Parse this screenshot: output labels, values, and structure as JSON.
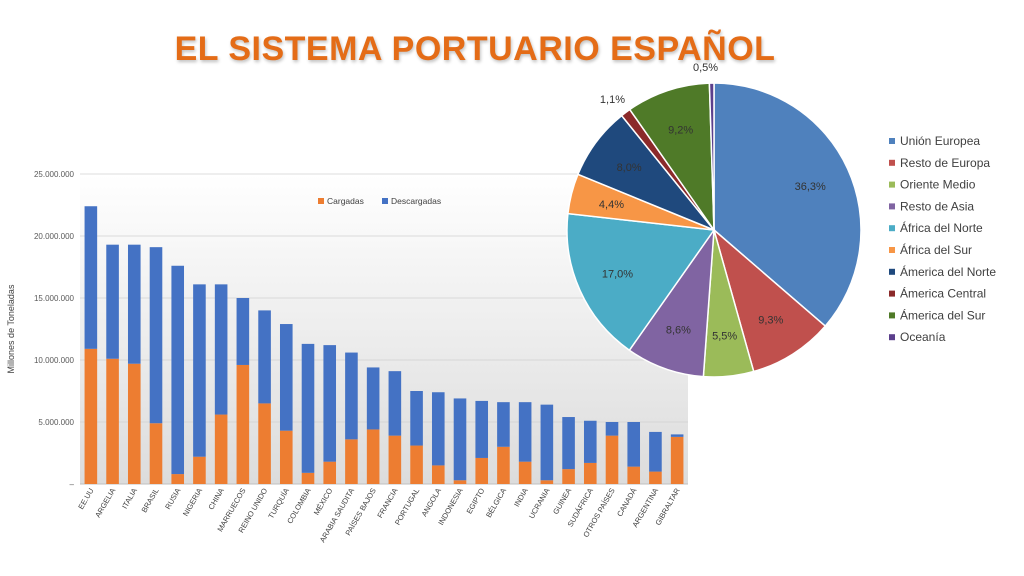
{
  "title": "EL SISTEMA PORTUARIO ESPAÑOL",
  "chart_data": [
    {
      "type": "bar",
      "stacked": true,
      "ylabel": "Millones de Toneladas",
      "ylim": [
        0,
        25000000
      ],
      "yticks": [
        "–",
        "5.000.000",
        "10.000.000",
        "15.000.000",
        "20.000.000",
        "25.000.000"
      ],
      "legend_position": "top-center",
      "categories": [
        "EE.UU",
        "ARGELIA",
        "ITALIA",
        "BRASIL",
        "RUSIA",
        "NIGERIA",
        "CHINA",
        "MARRUECOS",
        "REINO UNIDO",
        "TURQUÍA",
        "COLOMBIA",
        "MÉXICO",
        "ARABIA SAUDITA",
        "PAÍSES BAJOS",
        "FRANCIA",
        "PORTUGAL",
        "ANGOLA",
        "INDONESIA",
        "EGIPTO",
        "BÉLGICA",
        "INDIA",
        "UCRANIA",
        "GUINEA",
        "SUDÁFRICA",
        "OTROS PAÍSES",
        "CANADÁ",
        "ARGENTINA",
        "GIBRALTAR"
      ],
      "series": [
        {
          "name": "Cargadas",
          "color": "#ed7d31",
          "values": [
            10900000,
            10100000,
            9700000,
            4900000,
            800000,
            2200000,
            5600000,
            9600000,
            6500000,
            4300000,
            900000,
            1800000,
            3600000,
            4400000,
            3900000,
            3100000,
            1500000,
            300000,
            2100000,
            3000000,
            1800000,
            300000,
            1200000,
            1700000,
            3900000,
            1400000,
            1000000,
            3800000
          ]
        },
        {
          "name": "Descargadas",
          "color": "#4472c4",
          "values": [
            11500000,
            9200000,
            9600000,
            14200000,
            16800000,
            13900000,
            10500000,
            5400000,
            7500000,
            8600000,
            10400000,
            9400000,
            7000000,
            5000000,
            5200000,
            4400000,
            5900000,
            6600000,
            4600000,
            3600000,
            4800000,
            6100000,
            4200000,
            3400000,
            1100000,
            3600000,
            3200000,
            200000
          ]
        }
      ]
    },
    {
      "type": "pie",
      "slices": [
        {
          "name": "Unión Europea",
          "value": 36.3,
          "label": "36,3%",
          "color": "#4f81bd"
        },
        {
          "name": "Resto de Europa",
          "value": 9.3,
          "label": "9,3%",
          "color": "#c0504d"
        },
        {
          "name": "Oriente Medio",
          "value": 5.5,
          "label": "5,5%",
          "color": "#9bbb59"
        },
        {
          "name": "Resto de Asia",
          "value": 8.6,
          "label": "8,6%",
          "color": "#8064a2"
        },
        {
          "name": "África del Norte",
          "value": 17.0,
          "label": "17,0%",
          "color": "#4bacc6"
        },
        {
          "name": "África del Sur",
          "value": 4.4,
          "label": "4,4%",
          "color": "#f79646"
        },
        {
          "name": "Ámerica del Norte",
          "value": 8.0,
          "label": "8,0%",
          "color": "#1f497d"
        },
        {
          "name": "Ámerica Central",
          "value": 1.1,
          "label": "1,1%",
          "color": "#8b2a2a"
        },
        {
          "name": "Ámerica del Sur",
          "value": 9.2,
          "label": "9,2%",
          "color": "#4f7a28"
        },
        {
          "name": "Oceanía",
          "value": 0.5,
          "label": "0,5%",
          "color": "#5b3f8c"
        }
      ],
      "legend_position": "right"
    }
  ]
}
